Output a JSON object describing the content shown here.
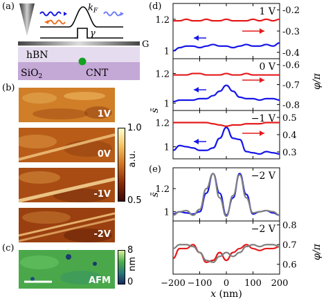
{
  "panel_letters": {
    "a": "(a)",
    "b": "(b)",
    "c": "(c)",
    "d": "(d)",
    "e": "(e)"
  },
  "schematic": {
    "kf": "k",
    "kf_sub": "F",
    "gamma": "γ",
    "g": "G",
    "hbn": "hBN",
    "sio2": "SiO",
    "sio2_sub": "2",
    "cnt": "CNT"
  },
  "images_b": {
    "labels": [
      "1V",
      "0V",
      "-1V",
      "-2V"
    ],
    "colorbar": {
      "max": "1.0",
      "min": "0.5",
      "unit": "a.u."
    }
  },
  "image_c": {
    "label": "AFM",
    "colorbar": {
      "max": "8",
      "min": "0",
      "unit": "nm"
    }
  },
  "colors": {
    "red": "#e41a1c",
    "blue": "#1515e8",
    "gray": "#808080"
  },
  "chart_data": [
    {
      "type": "line",
      "panel": "(d)",
      "annotation": "1 V",
      "x": [
        -200,
        -175,
        -150,
        -125,
        -100,
        -75,
        -50,
        -25,
        0,
        25,
        50,
        75,
        100,
        125,
        150,
        175,
        200
      ],
      "series": [
        {
          "axis": "left",
          "color": "#1515e8",
          "values": [
            1.0,
            1.02,
            1.03,
            1.03,
            1.02,
            1.03,
            1.04,
            1.03,
            1.03,
            1.02,
            1.03,
            1.04,
            1.03,
            1.03,
            1.04,
            1.03,
            1.05
          ]
        },
        {
          "axis": "left",
          "color": "#e41a1c",
          "values": [
            1.19,
            1.19,
            1.2,
            1.19,
            1.19,
            1.2,
            1.19,
            1.19,
            1.2,
            1.19,
            1.19,
            1.19,
            1.2,
            1.19,
            1.2,
            1.19,
            1.2
          ]
        }
      ],
      "left_ticks": [
        "1.2",
        "1"
      ],
      "left_ylim": [
        0.95,
        1.3
      ],
      "right_ticks": [
        "-0.2",
        "-0.3",
        "-0.4"
      ],
      "right_ylim": [
        -0.43,
        -0.17
      ]
    },
    {
      "type": "line",
      "panel": "(d)",
      "annotation": "0 V",
      "x": [
        -200,
        -175,
        -150,
        -125,
        -100,
        -75,
        -50,
        -25,
        0,
        25,
        50,
        75,
        100,
        125,
        150,
        175,
        200
      ],
      "series": [
        {
          "axis": "left",
          "color": "#1515e8",
          "values": [
            1.01,
            1.02,
            1.02,
            1.02,
            1.03,
            1.03,
            1.05,
            1.08,
            1.12,
            1.08,
            1.04,
            1.03,
            1.03,
            1.02,
            1.03,
            1.03,
            1.02
          ]
        },
        {
          "axis": "left",
          "color": "#e41a1c",
          "values": [
            1.19,
            1.19,
            1.19,
            1.2,
            1.2,
            1.19,
            1.19,
            1.19,
            1.2,
            1.19,
            1.19,
            1.2,
            1.19,
            1.19,
            1.19,
            1.19,
            1.19
          ]
        }
      ],
      "left_ticks": [
        "1.2",
        "1"
      ],
      "left_ylim": [
        0.95,
        1.3
      ],
      "right_ticks": [
        "-0.6",
        "-0.7",
        "-0.8"
      ],
      "right_ylim": [
        -0.83,
        -0.57
      ]
    },
    {
      "type": "line",
      "panel": "(d)",
      "annotation": "−1 V",
      "x": [
        -200,
        -175,
        -150,
        -125,
        -100,
        -75,
        -50,
        -25,
        0,
        25,
        50,
        75,
        100,
        125,
        150,
        175,
        200
      ],
      "series": [
        {
          "axis": "left",
          "color": "#1515e8",
          "values": [
            0.97,
            1.01,
            1.0,
            0.99,
            0.97,
            0.97,
            0.99,
            1.07,
            1.16,
            1.07,
            1.06,
            0.96,
            0.95,
            0.94,
            0.96,
            0.95,
            0.94
          ]
        },
        {
          "axis": "left",
          "color": "#e41a1c",
          "values": [
            1.2,
            1.2,
            1.2,
            1.2,
            1.2,
            1.2,
            1.19,
            1.18,
            1.17,
            1.18,
            1.18,
            1.19,
            1.19,
            1.19,
            1.2,
            1.2,
            1.2
          ]
        }
      ],
      "left_ticks": [
        "1.2",
        "1"
      ],
      "left_ylim": [
        0.9,
        1.3
      ],
      "right_ticks": [
        "0.5",
        "0.4",
        "0.3"
      ],
      "right_ylim": [
        0.26,
        0.54
      ]
    },
    {
      "type": "line",
      "panel": "(e)",
      "annotation": "−2 V",
      "x": [
        -200,
        -175,
        -150,
        -125,
        -100,
        -75,
        -50,
        -25,
        0,
        25,
        50,
        75,
        100,
        125,
        150,
        175,
        200
      ],
      "series": [
        {
          "axis": "left",
          "color": "#1515e8",
          "values": [
            0.98,
            1.0,
            0.99,
            0.98,
            1.0,
            1.16,
            1.33,
            1.16,
            0.97,
            1.12,
            1.33,
            1.15,
            0.98,
            1.0,
            1.01,
            0.99,
            0.97
          ]
        },
        {
          "axis": "left",
          "color": "#808080",
          "values": [
            0.97,
            1.0,
            1.01,
            0.97,
            1.02,
            1.2,
            1.33,
            1.12,
            0.96,
            1.14,
            1.32,
            1.12,
            0.99,
            1.0,
            1.01,
            1.0,
            0.97
          ]
        }
      ],
      "left_ticks": [
        "1.2",
        "1"
      ],
      "left_ylim": [
        0.92,
        1.38
      ],
      "right_ticks": [],
      "right_ylim": null
    },
    {
      "type": "line",
      "panel": "(e)",
      "annotation": "−2 V",
      "x": [
        -200,
        -175,
        -150,
        -125,
        -100,
        -75,
        -50,
        -25,
        0,
        25,
        50,
        75,
        100,
        125,
        150,
        175,
        200
      ],
      "series": [
        {
          "axis": "right",
          "color": "#e41a1c",
          "values": [
            0.63,
            0.68,
            0.68,
            0.7,
            0.66,
            0.61,
            0.62,
            0.66,
            0.62,
            0.66,
            0.68,
            0.7,
            0.68,
            0.67,
            0.68,
            0.68,
            0.69
          ]
        },
        {
          "axis": "right",
          "color": "#808080",
          "values": [
            0.68,
            0.7,
            0.7,
            0.69,
            0.66,
            0.62,
            0.61,
            0.64,
            0.66,
            0.64,
            0.66,
            0.69,
            0.7,
            0.69,
            0.7,
            0.7,
            0.69
          ]
        }
      ],
      "left_ticks": [],
      "left_ylim": null,
      "right_ticks": [
        "0.8",
        "0.7",
        "0.6"
      ],
      "right_ylim": [
        0.55,
        0.82
      ]
    }
  ],
  "axes": {
    "x_ticks": [
      "−200",
      "−100",
      "0",
      "100",
      "200"
    ],
    "x_label_var": "x",
    "x_label_unit": " (nm)",
    "left_label_d": "s̄",
    "left_label_e": "s̄",
    "right_label_d": "φ/π",
    "right_label_e": "φ/π"
  }
}
